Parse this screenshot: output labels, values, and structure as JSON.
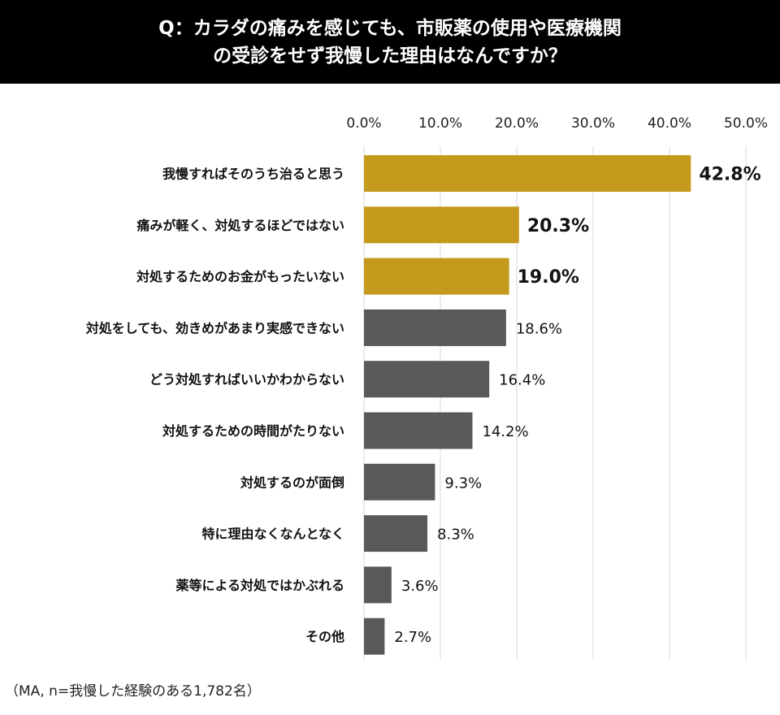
{
  "header": {
    "question_line1": "Q：カラダの痛みを感じても、市販薬の使用や医療機関",
    "question_line2": "の受診をせず我慢した理由はなんですか？"
  },
  "footnote": "（MA, n=我慢した経験のある1,782名）",
  "colors": {
    "highlight": "#C49A1C",
    "default": "#595959",
    "grid": "#D9D9D9"
  },
  "chart_data": {
    "type": "bar",
    "orientation": "horizontal",
    "title": "Q：カラダの痛みを感じても、市販薬の使用や医療機関の受診をせず我慢した理由はなんですか？",
    "categories": [
      "我慢すればそのうち治ると思う",
      "痛みが軽く、対処するほどではない",
      "対処するためのお金がもったいない",
      "対処をしても、効きめがあまり実感できない",
      "どう対処すればいいかわからない",
      "対処するための時間がたりない",
      "対処するのが面倒",
      "特に理由なくなんとなく",
      "薬等による対処ではかぶれる",
      "その他"
    ],
    "values": [
      42.8,
      20.3,
      19.0,
      18.6,
      16.4,
      14.2,
      9.3,
      8.3,
      3.6,
      2.7
    ],
    "value_labels": [
      "42.8%",
      "20.3%",
      "19.0%",
      "18.6%",
      "16.4%",
      "14.2%",
      "9.3%",
      "8.3%",
      "3.6%",
      "2.7%"
    ],
    "highlighted": [
      true,
      true,
      true,
      false,
      false,
      false,
      false,
      false,
      false,
      false
    ],
    "xlim": [
      0,
      50
    ],
    "xticks": [
      "0.0%",
      "10.0%",
      "20.0%",
      "30.0%",
      "40.0%",
      "50.0%"
    ],
    "grid": true,
    "legend": "none"
  }
}
